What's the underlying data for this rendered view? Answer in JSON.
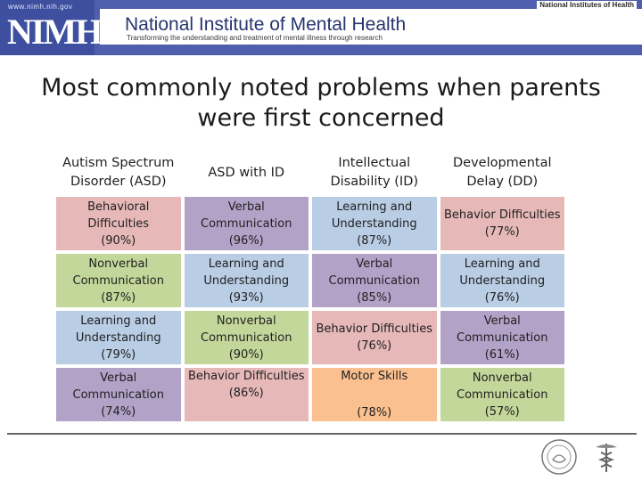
{
  "header": {
    "url": "www.nimh.nih.gov",
    "logo": "NIMH",
    "org_name": "National Institute of Mental Health",
    "tagline": "Transforming the understanding and treatment of mental illness through research",
    "parent_org": "National Institutes of Health",
    "bar_color": "#4f5fae"
  },
  "title": "Most commonly noted problems when parents were first concerned",
  "table": {
    "headers": [
      "Autism Spectrum Disorder (ASD)",
      "ASD with ID",
      "Intellectual Disability (ID)",
      "Developmental Delay (DD)"
    ],
    "rows": [
      [
        {
          "label": "Behavioral Difficulties",
          "pct": "(90%)",
          "color": "#e6b9b8"
        },
        {
          "label": "Verbal Communication",
          "pct": "(96%)",
          "color": "#b3a2c7"
        },
        {
          "label": "Learning and Understanding",
          "pct": "(87%)",
          "color": "#b9cde5"
        },
        {
          "label": "Behavior Difficulties",
          "pct": "(77%)",
          "color": "#e6b9b8"
        }
      ],
      [
        {
          "label": "Nonverbal Communication",
          "pct": "(87%)",
          "color": "#c4d79b"
        },
        {
          "label": "Learning and Understanding",
          "pct": "(93%)",
          "color": "#b9cde5"
        },
        {
          "label": "Verbal Communication",
          "pct": "(85%)",
          "color": "#b3a2c7"
        },
        {
          "label": "Learning and Understanding",
          "pct": "(76%)",
          "color": "#b9cde5"
        }
      ],
      [
        {
          "label": "Learning and Understanding",
          "pct": "(79%)",
          "color": "#b9cde5"
        },
        {
          "label": "Nonverbal Communication",
          "pct": "(90%)",
          "color": "#c4d79b"
        },
        {
          "label": "Behavior Difficulties",
          "pct": "(76%)",
          "color": "#e6b9b8"
        },
        {
          "label": "Verbal Communication",
          "pct": "(61%)",
          "color": "#b3a2c7"
        }
      ],
      [
        {
          "label": "Verbal Communication",
          "pct": "(74%)",
          "color": "#b3a2c7"
        },
        {
          "label": "Behavior Difficulties",
          "pct": "(86%)",
          "color": "#e6b9b8"
        },
        {
          "label": "Motor Skills",
          "pct": "(78%)",
          "color": "#fac090"
        },
        {
          "label": "Nonverbal Communication",
          "pct": "(57%)",
          "color": "#c4d79b"
        }
      ]
    ]
  },
  "footer": {
    "icons": [
      "hhs-seal-icon",
      "caduceus-icon"
    ]
  }
}
